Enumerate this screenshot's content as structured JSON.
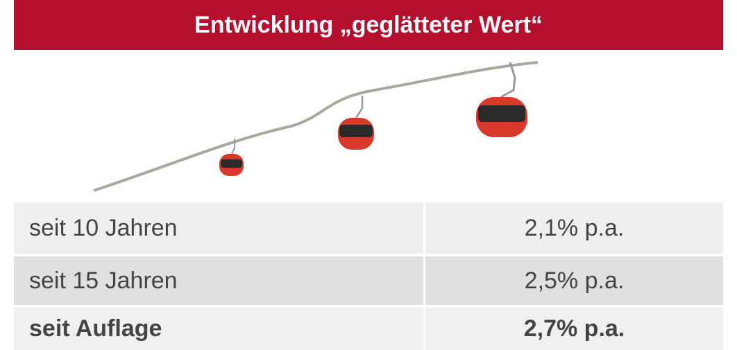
{
  "header": {
    "title": "Entwicklung „geglätteter Wert“"
  },
  "table": {
    "rows": [
      [
        "seit 10 Jahren",
        "2,1% p.a."
      ],
      [
        "seit 15 Jahren",
        "2,5% p.a."
      ],
      [
        "seit Auflage",
        "2,7% p.a."
      ]
    ]
  }
}
